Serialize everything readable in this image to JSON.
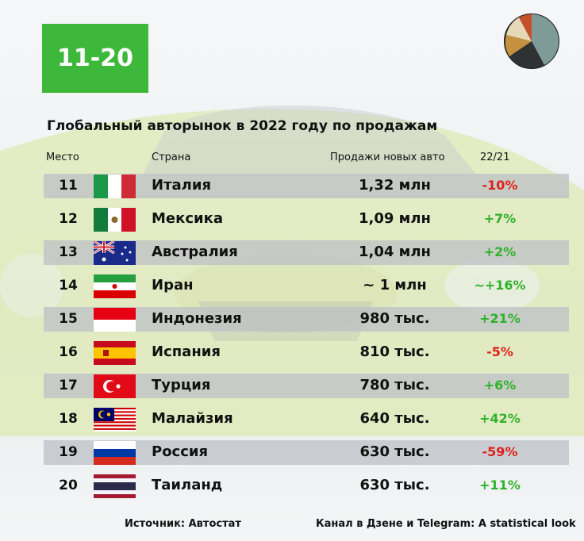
{
  "badge": {
    "text": "11-20"
  },
  "title": "Глобальный авторынок в 2022 году по продажам",
  "headers": {
    "place": "Место",
    "country": "Страна",
    "sales": "Продажи новых авто",
    "change": "22/21"
  },
  "rows": [
    {
      "rank": "11",
      "country": "Италия",
      "flag": "italy-flag-icon",
      "sales": "1,32 млн",
      "change": "-10%",
      "trend": "negative"
    },
    {
      "rank": "12",
      "country": "Мексика",
      "flag": "mexico-flag-icon",
      "sales": "1,09 млн",
      "change": "+7%",
      "trend": "positive"
    },
    {
      "rank": "13",
      "country": "Австралия",
      "flag": "australia-flag-icon",
      "sales": "1,04 млн",
      "change": "+2%",
      "trend": "positive"
    },
    {
      "rank": "14",
      "country": "Иран",
      "flag": "iran-flag-icon",
      "sales": "~ 1 млн",
      "change": "~+16%",
      "trend": "positive"
    },
    {
      "rank": "15",
      "country": "Индонезия",
      "flag": "indonesia-flag-icon",
      "sales": "980 тыс.",
      "change": "+21%",
      "trend": "positive"
    },
    {
      "rank": "16",
      "country": "Испания",
      "flag": "spain-flag-icon",
      "sales": "810 тыс.",
      "change": "-5%",
      "trend": "negative"
    },
    {
      "rank": "17",
      "country": "Турция",
      "flag": "turkey-flag-icon",
      "sales": "780 тыс.",
      "change": "+6%",
      "trend": "positive"
    },
    {
      "rank": "18",
      "country": "Малайзия",
      "flag": "malaysia-flag-icon",
      "sales": "640 тыс.",
      "change": "+42%",
      "trend": "positive"
    },
    {
      "rank": "19",
      "country": "Россия",
      "flag": "russia-flag-icon",
      "sales": "630 тыс.",
      "change": "-59%",
      "trend": "negative"
    },
    {
      "rank": "20",
      "country": "Таиланд",
      "flag": "thailand-flag-icon",
      "sales": "630 тыс.",
      "change": "+11%",
      "trend": "positive"
    }
  ],
  "footer": {
    "source": "Источник: Автостат",
    "channel": "Канал в Дзене и Telegram: A statistical look"
  },
  "colors": {
    "badge": "#3db83a",
    "positive": "#2fb22b",
    "negative": "#e0201b",
    "row_shade": "#bec2c6"
  },
  "logo": {
    "icon": "pie-chart-logo-icon"
  }
}
